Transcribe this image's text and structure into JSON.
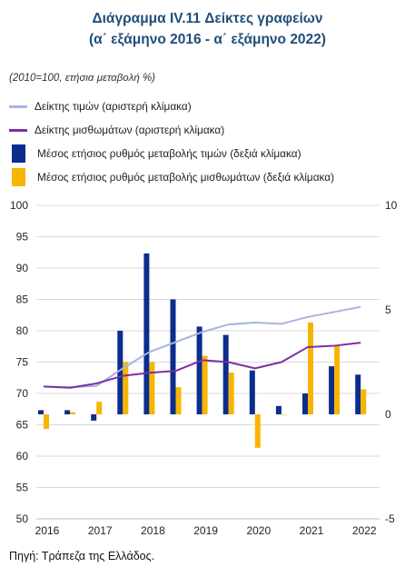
{
  "title_line1": "Διάγραμμα IV.11 Δείκτες γραφείων",
  "title_line2": "(α΄ εξάμηνο 2016 - α΄ εξάμηνο 2022)",
  "units_note": "(2010=100, ετήσια μεταβολή %)",
  "source": "Πηγή: Τράπεζα της Ελλάδος.",
  "colors": {
    "price_index": "#a8b4e0",
    "rent_index": "#7b2fa5",
    "price_change": "#0b2d8c",
    "rent_change": "#f7b500"
  },
  "chart_data": {
    "type": "bar",
    "x_tick_labels": [
      "2016",
      "2017",
      "2018",
      "2019",
      "2020",
      "2021",
      "2022"
    ],
    "periods": [
      "2016 H1",
      "2016 H2",
      "2017 H1",
      "2017 H2",
      "2018 H1",
      "2018 H2",
      "2019 H1",
      "2019 H2",
      "2020 H1",
      "2020 H2",
      "2021 H1",
      "2021 H2",
      "2022 H1"
    ],
    "left_axis": {
      "ylim": [
        50,
        100
      ],
      "ticks": [
        "50",
        "55",
        "60",
        "65",
        "70",
        "75",
        "80",
        "85",
        "90",
        "95",
        "100"
      ]
    },
    "right_axis": {
      "ylim": [
        -5,
        10
      ],
      "ticks": [
        "-5",
        "0",
        "5",
        "10"
      ]
    },
    "line_series": [
      {
        "name": "Δείκτης τιμών (αριστερή κλίμακα)",
        "axis": "left",
        "values": [
          71.1,
          71.0,
          71.2,
          74.0,
          76.6,
          78.2,
          79.8,
          81.0,
          81.3,
          81.1,
          82.2,
          83.0,
          83.8
        ]
      },
      {
        "name": "Δείκτης μισθωμάτων (αριστερή κλίμακα)",
        "axis": "left",
        "values": [
          71.1,
          70.9,
          71.6,
          72.8,
          73.3,
          73.6,
          75.3,
          75.0,
          74.0,
          75.0,
          77.4,
          77.6,
          78.1
        ]
      }
    ],
    "bar_series": [
      {
        "name": "Μέσος ετήσιος ρυθμός μεταβολής τιμών (δεξιά κλίμακα)",
        "axis": "right",
        "values": [
          0.2,
          0.2,
          -0.3,
          4.0,
          7.7,
          5.5,
          4.2,
          3.8,
          2.1,
          0.4,
          1.0,
          2.3,
          1.9
        ]
      },
      {
        "name": "Μέσος ετήσιος ρυθμός μεταβολής μισθωμάτων (δεξιά κλίμακα)",
        "axis": "right",
        "values": [
          -0.7,
          0.1,
          0.6,
          2.5,
          2.5,
          1.3,
          2.8,
          2.0,
          -1.6,
          0.0,
          4.4,
          3.3,
          1.2
        ]
      }
    ],
    "grid": "horizontal",
    "legend_position": "top-left"
  }
}
